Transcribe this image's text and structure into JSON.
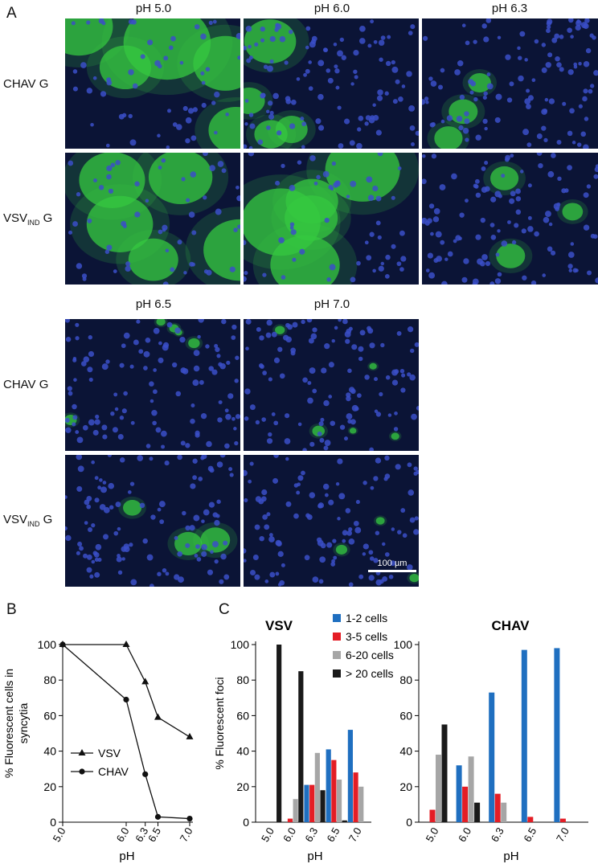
{
  "panel_a": {
    "letter": "A",
    "ph_labels": [
      "pH 5.0",
      "pH 6.0",
      "pH 6.3",
      "pH 6.5",
      "pH 7.0"
    ],
    "rows": [
      {
        "prefix": "CHAV G",
        "sub": "",
        "suffix": ""
      },
      {
        "prefix": "VSV",
        "sub": "IND",
        "suffix": " G"
      }
    ],
    "scale_bar": "100 µm",
    "colors": {
      "background": "#0b1436",
      "nuclei": "#3b4fc8",
      "gfp": "#35c840"
    }
  },
  "panel_b": {
    "letter": "B",
    "ylabel_line1": "% Fluorescent cells in",
    "ylabel_line2": "syncytia",
    "xlabel": "pH",
    "yticks": [
      "0",
      "20",
      "40",
      "60",
      "80",
      "100"
    ],
    "xticks": [
      "5.0",
      "6.0",
      "6.3",
      "6.5",
      "7.0"
    ],
    "legend": [
      "VSV",
      "CHAV"
    ]
  },
  "panel_c": {
    "letter": "C",
    "ylabel": "% Fluorescent foci",
    "xlabel": "pH",
    "subplot_titles": [
      "VSV",
      "CHAV"
    ],
    "yticks": [
      "0",
      "20",
      "40",
      "60",
      "80",
      "100"
    ],
    "xticks": [
      "5.0",
      "6.0",
      "6.3",
      "6.5",
      "7.0"
    ],
    "legend": [
      "1-2 cells",
      "3-5 cells",
      "6-20 cells",
      "> 20 cells"
    ],
    "colors": [
      "#1f6fc0",
      "#e41d25",
      "#a6a6a6",
      "#1a1a1a"
    ]
  },
  "chart_data": [
    {
      "type": "line",
      "xlabel": "pH",
      "ylabel": "% Fluorescent cells in syncytia",
      "ylim": [
        0,
        100
      ],
      "x": [
        5.0,
        6.0,
        6.3,
        6.5,
        7.0
      ],
      "series": [
        {
          "name": "VSV",
          "marker": "triangle",
          "values": [
            100,
            100,
            79,
            59,
            48
          ]
        },
        {
          "name": "CHAV",
          "marker": "circle",
          "values": [
            100,
            69,
            27,
            3,
            2
          ]
        }
      ],
      "legend_position": "bottom-left"
    },
    {
      "type": "bar",
      "title": "VSV",
      "xlabel": "pH",
      "ylabel": "% Fluorescent foci",
      "ylim": [
        0,
        100
      ],
      "categories": [
        "5.0",
        "6.0",
        "6.3",
        "6.5",
        "7.0"
      ],
      "series": [
        {
          "name": "1-2 cells",
          "values": [
            0,
            0,
            21,
            41,
            52
          ]
        },
        {
          "name": "3-5 cells",
          "values": [
            0,
            2,
            21,
            35,
            28
          ]
        },
        {
          "name": "6-20 cells",
          "values": [
            0,
            13,
            39,
            24,
            20
          ]
        },
        {
          "name": "> 20 cells",
          "values": [
            100,
            85,
            18,
            1,
            0
          ]
        }
      ]
    },
    {
      "type": "bar",
      "title": "CHAV",
      "xlabel": "pH",
      "ylabel": "% Fluorescent foci",
      "ylim": [
        0,
        100
      ],
      "categories": [
        "5.0",
        "6.0",
        "6.3",
        "6.5",
        "7.0"
      ],
      "series": [
        {
          "name": "1-2 cells",
          "values": [
            0,
            32,
            73,
            97,
            98
          ]
        },
        {
          "name": "3-5 cells",
          "values": [
            7,
            20,
            16,
            3,
            2
          ]
        },
        {
          "name": "6-20 cells",
          "values": [
            38,
            37,
            11,
            0,
            0
          ]
        },
        {
          "name": "> 20 cells",
          "values": [
            55,
            11,
            0,
            0,
            0
          ]
        }
      ]
    }
  ]
}
